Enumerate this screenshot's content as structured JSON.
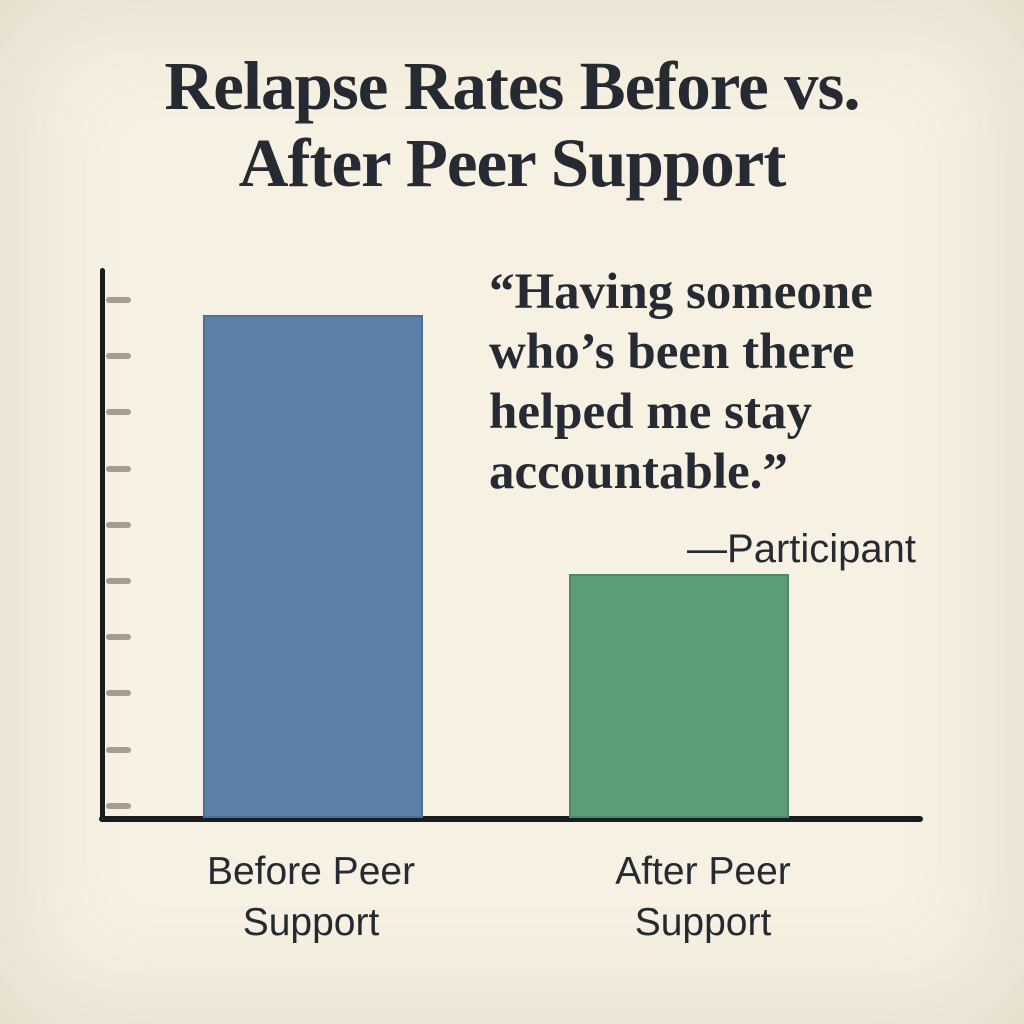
{
  "colors": {
    "background": "#f6f1e2",
    "ink": "#262b33",
    "axis": "#1a1d22",
    "tick": "#a69f91",
    "bar_before": "#5b82a6",
    "bar_before_border": "#4a7092",
    "bar_after": "#5c9d76",
    "bar_after_border": "#4b8a66"
  },
  "title": {
    "text": "Relapse Rates Before vs. After Peer Support",
    "lines": [
      "Relapse Rates Before vs.",
      "After Peer Support"
    ]
  },
  "quote": {
    "text": "“Having someone who’s been there helped me stay accountable.”",
    "lines": [
      "“Having someone",
      "who’s been there",
      "helped me stay",
      "accountable.”"
    ],
    "attribution": "—Participant"
  },
  "chart_data": {
    "type": "bar",
    "title": "Relapse Rates Before vs. After Peer Support",
    "categories": [
      "Before Peer Support",
      "After Peer Support"
    ],
    "values": [
      97,
      47
    ],
    "ylim": [
      0,
      100
    ],
    "value_labels_shown": false,
    "y_tick_count": 10,
    "grid": false,
    "legend": false,
    "xlabel": "",
    "ylabel": "",
    "bar_colors": [
      "#5b82a6",
      "#5c9d76"
    ],
    "annotations": [
      "“Having someone who’s been there helped me stay accountable.”",
      "—Participant"
    ]
  }
}
